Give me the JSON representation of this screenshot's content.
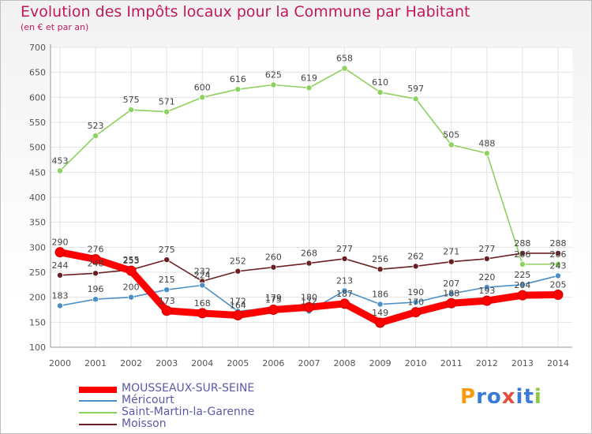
{
  "chart_data": {
    "type": "line",
    "title": "Evolution des Impôts locaux pour la Commune par Habitant",
    "subtitle": "(en € et par an)",
    "xlabel": "",
    "ylabel": "",
    "ylim": [
      100,
      700
    ],
    "yticks": [
      100,
      150,
      200,
      250,
      300,
      350,
      400,
      450,
      500,
      550,
      600,
      650,
      700
    ],
    "x": [
      "2000",
      "2001",
      "2002",
      "2003",
      "2004",
      "2005",
      "2006",
      "2007",
      "2008",
      "2009",
      "2010",
      "2011",
      "2012",
      "2013",
      "2014"
    ],
    "series": [
      {
        "name": "MOUSSEAUX-SUR-SEINE",
        "color": "#ff0000",
        "values": [
          290,
          276,
          253,
          173,
          168,
          164,
          175,
          180,
          187,
          149,
          170,
          188,
          193,
          204,
          205
        ]
      },
      {
        "name": "Méricourt",
        "color": "#4a8fc7",
        "values": [
          183,
          196,
          200,
          215,
          224,
          172,
          179,
          172,
          213,
          186,
          190,
          207,
          220,
          225,
          243
        ]
      },
      {
        "name": "Saint-Martin-la-Garenne",
        "color": "#8dd15e",
        "values": [
          453,
          523,
          575,
          571,
          600,
          616,
          625,
          619,
          658,
          610,
          597,
          505,
          488,
          266,
          266
        ]
      },
      {
        "name": "Moisson",
        "color": "#6b1f23",
        "values": [
          244,
          248,
          255,
          275,
          232,
          252,
          260,
          268,
          277,
          256,
          262,
          271,
          277,
          288,
          288
        ]
      }
    ],
    "labels": [
      [
        "290",
        "276",
        "253",
        "173",
        "168",
        "164",
        "175",
        "180",
        "187",
        "149",
        "170",
        "188",
        "193",
        "204",
        "205"
      ],
      [
        "183",
        "196",
        "200",
        "215",
        "224",
        "172",
        "179",
        "172",
        "213",
        "186",
        "190",
        "207",
        "220",
        "225",
        "243"
      ],
      [
        "453",
        "523",
        "575",
        "571",
        "600",
        "616",
        "625",
        "619",
        "658",
        "610",
        "597",
        "505",
        "488",
        "266",
        "266"
      ],
      [
        "244",
        "248",
        "255",
        "275",
        "232",
        "252",
        "260",
        "268",
        "277",
        "256",
        "262",
        "271",
        "277",
        "288",
        "288"
      ]
    ]
  },
  "legend": {
    "items": [
      "MOUSSEAUX-SUR-SEINE",
      "Méricourt",
      "Saint-Martin-la-Garenne",
      "Moisson"
    ]
  },
  "logo": {
    "letters": [
      "P",
      "r",
      "o",
      "x",
      "i",
      "t",
      "i"
    ],
    "colors": [
      "#f39c12",
      "#3a7bd5",
      "#3a7bd5",
      "#e74c3c",
      "#3a7bd5",
      "#3a7bd5",
      "#8dc63f"
    ]
  }
}
